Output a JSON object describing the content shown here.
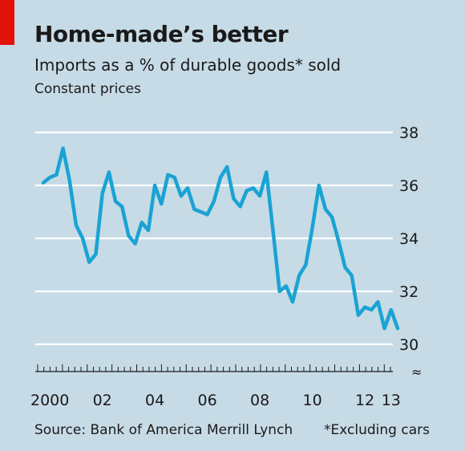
{
  "header": {
    "title": "Home-made’s better",
    "subtitle": "Imports as a % of durable goods* sold",
    "note": "Constant prices"
  },
  "footer": {
    "source": "Source: Bank of America Merrill Lynch",
    "footnote": "*Excluding cars"
  },
  "colors": {
    "background": "#c6dbe6",
    "line": "#1aa3d4",
    "accent": "#e3120b",
    "grid": "#ffffff"
  },
  "chart_data": {
    "type": "line",
    "title": "Home-made’s better",
    "subtitle": "Imports as a % of durable goods* sold",
    "ylim": [
      30,
      38
    ],
    "y_ticks": [
      30,
      32,
      34,
      36,
      38
    ],
    "y_tick_labels": [
      "30",
      "32",
      "34",
      "36",
      "38"
    ],
    "y_axis_side": "right",
    "y_axis_break_symbol": "≈",
    "x_tick_labels": [
      {
        "x": 2000,
        "label": "2000"
      },
      {
        "x": 2002,
        "label": "02"
      },
      {
        "x": 2004,
        "label": "04"
      },
      {
        "x": 2006,
        "label": "06"
      },
      {
        "x": 2008,
        "label": "08"
      },
      {
        "x": 2010,
        "label": "10"
      },
      {
        "x": 2012,
        "label": "12"
      },
      {
        "x": 2013,
        "label": "13"
      }
    ],
    "xlim": [
      1999.75,
      2013.25
    ],
    "grid": "horizontal",
    "series": [
      {
        "x": [
          1999.75,
          2000.0,
          2000.25,
          2000.5,
          2000.75,
          2001.0,
          2001.25,
          2001.5,
          2001.75,
          2002.0,
          2002.25,
          2002.5,
          2002.75,
          2003.0,
          2003.25,
          2003.5,
          2003.75,
          2004.0,
          2004.25,
          2004.5,
          2004.75,
          2005.0,
          2005.25,
          2005.5,
          2005.75,
          2006.0,
          2006.25,
          2006.5,
          2006.75,
          2007.0,
          2007.25,
          2007.5,
          2007.75,
          2008.0,
          2008.25,
          2008.5,
          2008.75,
          2009.0,
          2009.25,
          2009.5,
          2009.75,
          2010.0,
          2010.25,
          2010.5,
          2010.75,
          2011.0,
          2011.25,
          2011.5,
          2011.75,
          2012.0,
          2012.25,
          2012.5,
          2012.75,
          2013.0,
          2013.25
        ],
        "values": [
          36.1,
          36.3,
          36.4,
          37.4,
          36.2,
          34.5,
          34.0,
          33.1,
          33.4,
          35.7,
          36.5,
          35.4,
          35.2,
          34.1,
          33.8,
          34.6,
          34.3,
          36.0,
          35.3,
          36.4,
          36.3,
          35.6,
          35.9,
          35.1,
          35.0,
          34.9,
          35.4,
          36.3,
          36.7,
          35.5,
          35.2,
          35.8,
          35.9,
          35.6,
          36.5,
          34.3,
          32.0,
          32.2,
          31.6,
          32.6,
          33.0,
          34.4,
          36.0,
          35.1,
          34.8,
          33.9,
          32.9,
          32.6,
          31.1,
          31.4,
          31.3,
          31.6,
          30.6,
          31.3,
          30.6
        ]
      }
    ]
  }
}
